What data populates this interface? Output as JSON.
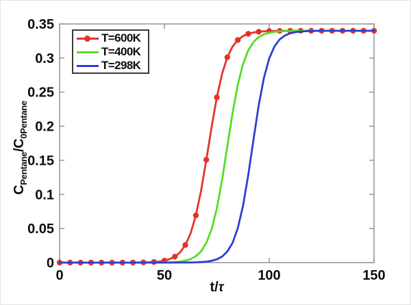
{
  "figure": {
    "background": "#ffffff"
  },
  "axes": {
    "xlabel_t": "t/",
    "xlabel_tau": "τ",
    "ylabel_c1": "C",
    "ylabel_sub1": "Pentane",
    "ylabel_c2": "/C",
    "ylabel_sub2": "0Pentane"
  },
  "legend": {
    "position": "upper-left",
    "items": [
      {
        "label": "T=600K",
        "color": "#e2342a",
        "marker": "circle"
      },
      {
        "label": "T=400K",
        "color": "#55dc27",
        "marker": "none"
      },
      {
        "label": "T=298K",
        "color": "#2b3fd1",
        "marker": "none"
      }
    ]
  },
  "chart_data": {
    "type": "line",
    "title": "",
    "xlabel": "t/τ",
    "ylabel": "C_Pentane/C_0Pentane",
    "xlim": [
      0,
      150
    ],
    "ylim": [
      0,
      0.35
    ],
    "grid": false,
    "legend_position": "upper-left",
    "axis_color": "#9a9a9a",
    "tick_label_color": "#0d0d0d",
    "x_ticks": [
      0,
      50,
      100,
      150
    ],
    "x_tick_labels": [
      "0",
      "50",
      "100",
      "150"
    ],
    "y_ticks": [
      0,
      0.05,
      0.1,
      0.15,
      0.2,
      0.25,
      0.3,
      0.35
    ],
    "y_tick_labels": [
      "0",
      "0.05",
      "0.1",
      "0.15",
      "0.2",
      "0.25",
      "0.3",
      "0.35"
    ],
    "plateau_value": 0.34,
    "x": [
      0,
      2.5,
      5,
      7.5,
      10,
      12.5,
      15,
      17.5,
      20,
      22.5,
      25,
      27.5,
      30,
      32.5,
      35,
      37.5,
      40,
      42.5,
      45,
      47.5,
      50,
      52.5,
      55,
      57.5,
      60,
      62.5,
      65,
      67.5,
      70,
      72.5,
      75,
      77.5,
      80,
      82.5,
      85,
      87.5,
      90,
      92.5,
      95,
      97.5,
      100,
      102.5,
      105,
      107.5,
      110,
      112.5,
      115,
      117.5,
      120,
      122.5,
      125,
      127.5,
      130,
      132.5,
      135,
      137.5,
      140,
      142.5,
      145,
      147.5,
      150
    ],
    "series": [
      {
        "name": "T=600K",
        "color": "#e2342a",
        "marker": "circle",
        "marker_every": 2,
        "values": [
          0,
          0,
          0,
          0,
          0,
          0,
          0,
          0,
          0,
          0,
          0,
          0,
          0,
          0.0001,
          0.0001,
          0.0002,
          0.0003,
          0.0005,
          0.0009,
          0.0016,
          0.0029,
          0.005,
          0.0087,
          0.0151,
          0.0258,
          0.043,
          0.0692,
          0.1058,
          0.1508,
          0.1987,
          0.2423,
          0.2768,
          0.3011,
          0.3168,
          0.3264,
          0.3322,
          0.3355,
          0.3375,
          0.3386,
          0.3392,
          0.3395,
          0.3397,
          0.3398,
          0.3399,
          0.3399,
          0.34,
          0.34,
          0.34,
          0.34,
          0.34,
          0.34,
          0.34,
          0.34,
          0.34,
          0.34,
          0.34,
          0.34,
          0.34,
          0.34,
          0.34,
          0.34
        ]
      },
      {
        "name": "T=400K",
        "color": "#55dc27",
        "marker": "none",
        "marker_every": 0,
        "values": [
          0,
          0,
          0,
          0,
          0,
          0,
          0,
          0,
          0,
          0,
          0,
          0,
          0,
          0,
          0,
          0,
          0,
          0,
          0.0001,
          0.0002,
          0.0003,
          0.0005,
          0.0009,
          0.0016,
          0.0029,
          0.0052,
          0.0093,
          0.0165,
          0.0288,
          0.0488,
          0.0793,
          0.1209,
          0.17,
          0.2191,
          0.2607,
          0.2912,
          0.3112,
          0.3235,
          0.3307,
          0.3348,
          0.3371,
          0.3384,
          0.3391,
          0.3395,
          0.3397,
          0.3398,
          0.34,
          0.34,
          0.34,
          0.34,
          0.34,
          0.34,
          0.34,
          0.34,
          0.34,
          0.34,
          0.34,
          0.34,
          0.34,
          0.34,
          0.34
        ]
      },
      {
        "name": "T=298K",
        "color": "#2b3fd1",
        "marker": "none",
        "marker_every": 0,
        "values": [
          0,
          0,
          0,
          0,
          0,
          0,
          0,
          0,
          0,
          0,
          0,
          0,
          0,
          0,
          0,
          0,
          0,
          0,
          0,
          0,
          0,
          0,
          0,
          0.0001,
          0.0001,
          0.0002,
          0.0004,
          0.0008,
          0.0014,
          0.0026,
          0.0048,
          0.0088,
          0.0161,
          0.0289,
          0.0503,
          0.0833,
          0.1284,
          0.1806,
          0.2309,
          0.2714,
          0.2995,
          0.317,
          0.3273,
          0.3331,
          0.3363,
          0.338,
          0.3389,
          0.3394,
          0.3396,
          0.3398,
          0.34,
          0.34,
          0.34,
          0.34,
          0.34,
          0.34,
          0.34,
          0.34,
          0.34,
          0.34,
          0.34
        ]
      }
    ]
  }
}
